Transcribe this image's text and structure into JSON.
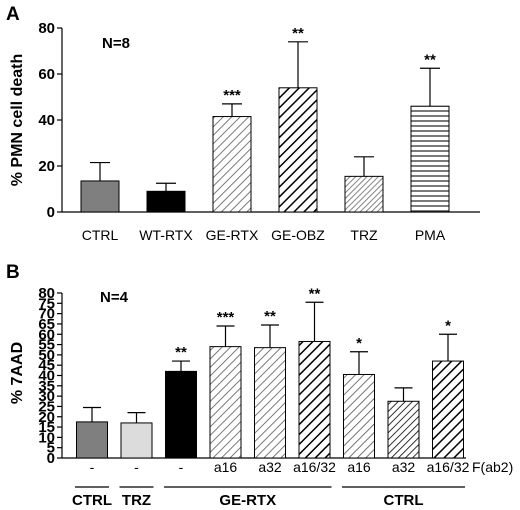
{
  "chart_data": [
    {
      "type": "bar",
      "panel": "A",
      "annotation": "N=8",
      "ylabel": "% PMN cell death",
      "ylim": [
        0,
        80
      ],
      "yticks": [
        0,
        20,
        40,
        60,
        80
      ],
      "categories": [
        "CTRL",
        "WT-RTX",
        "GE-RTX",
        "GE-OBZ",
        "TRZ",
        "PMA"
      ],
      "values": [
        13.5,
        9,
        41.5,
        54,
        15.5,
        46
      ],
      "errors": [
        8,
        3.5,
        5.5,
        20,
        8.5,
        16.5
      ],
      "significance": [
        "",
        "",
        "***",
        "**",
        "",
        "**"
      ],
      "fills": [
        "gray",
        "black",
        "diag-fine",
        "diag-bold",
        "diag-light",
        "horizontal"
      ]
    },
    {
      "type": "bar",
      "panel": "B",
      "annotation": "N=4",
      "ylabel": "% 7AAD",
      "ylim": [
        0,
        80
      ],
      "yticks": [
        0,
        5,
        10,
        15,
        20,
        25,
        30,
        35,
        40,
        45,
        50,
        55,
        60,
        65,
        70,
        75,
        80
      ],
      "categories": [
        "-",
        "-",
        "-",
        "a16",
        "a32",
        "a16/32",
        "a16",
        "a32",
        "a16/32"
      ],
      "category_axis_label": "F(ab2)",
      "groups": [
        {
          "label": "CTRL",
          "span": [
            0,
            0
          ]
        },
        {
          "label": "TRZ",
          "span": [
            1,
            1
          ]
        },
        {
          "label": "GE-RTX",
          "span": [
            2,
            5
          ]
        },
        {
          "label": "CTRL",
          "span": [
            6,
            8
          ]
        }
      ],
      "values": [
        17.5,
        17,
        42,
        54,
        53.5,
        56.5,
        40.5,
        27.5,
        47
      ],
      "errors": [
        7,
        5,
        5,
        10,
        11,
        19,
        11,
        6.5,
        13
      ],
      "significance": [
        "",
        "",
        "**",
        "***",
        "**",
        "**",
        "*",
        "",
        "*"
      ],
      "fills": [
        "gray",
        "lightgray",
        "black",
        "diag-fine",
        "diag-fine",
        "diag-bold",
        "diag-fine",
        "diag-dense",
        "diag-bold"
      ]
    }
  ]
}
